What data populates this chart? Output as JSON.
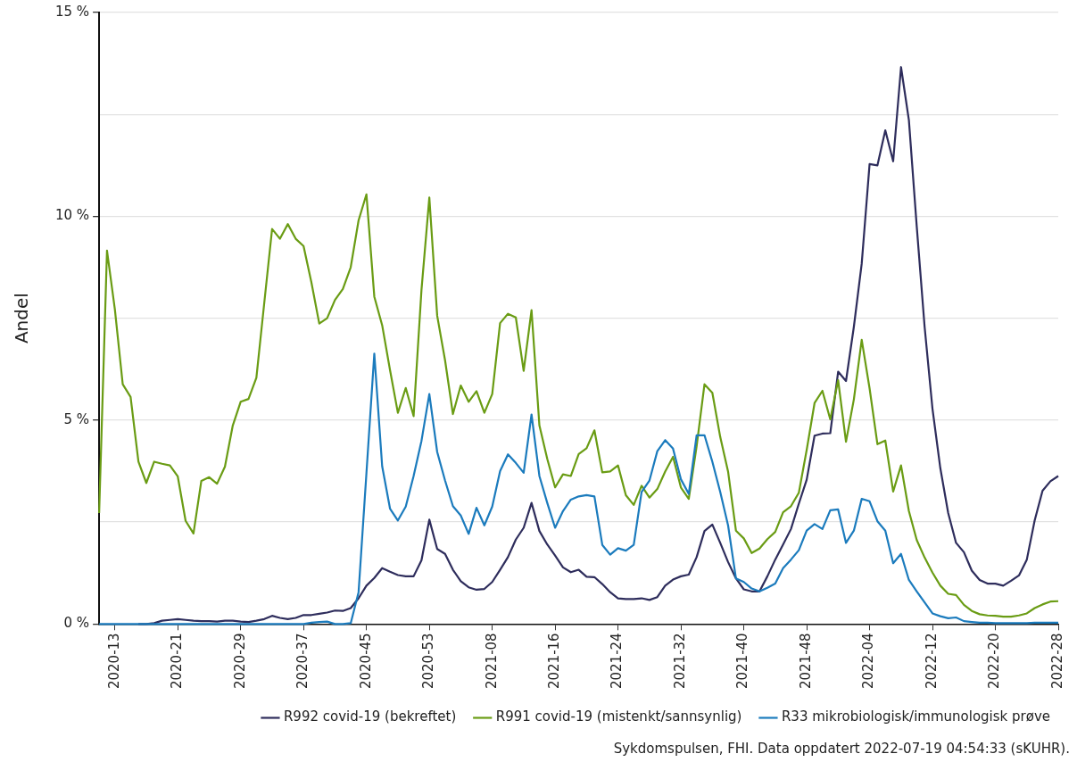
{
  "chart_data": {
    "type": "line",
    "ylabel": "Andel",
    "categories": [
      null,
      null,
      "2020-13",
      null,
      null,
      null,
      null,
      null,
      null,
      null,
      "2020-21",
      null,
      null,
      null,
      null,
      null,
      null,
      null,
      "2020-29",
      null,
      null,
      null,
      null,
      null,
      null,
      null,
      "2020-37",
      null,
      null,
      null,
      null,
      null,
      null,
      null,
      "2020-45",
      null,
      null,
      null,
      null,
      null,
      null,
      null,
      "2020-53",
      null,
      null,
      null,
      null,
      null,
      null,
      null,
      "2021-08",
      null,
      null,
      null,
      null,
      null,
      null,
      null,
      "2021-16",
      null,
      null,
      null,
      null,
      null,
      null,
      null,
      "2021-24",
      null,
      null,
      null,
      null,
      null,
      null,
      null,
      "2021-32",
      null,
      null,
      null,
      null,
      null,
      null,
      null,
      "2021-40",
      null,
      null,
      null,
      null,
      null,
      null,
      null,
      "2021-48",
      null,
      null,
      null,
      null,
      null,
      null,
      null,
      "2022-04",
      null,
      null,
      null,
      null,
      null,
      null,
      null,
      "2022-12",
      null,
      null,
      null,
      null,
      null,
      null,
      null,
      "2022-20",
      null,
      null,
      null,
      null,
      null,
      null,
      null,
      "2022-28"
    ],
    "series": [
      {
        "name": "R992 covid-19 (bekreftet)",
        "color": "#2e2d5c",
        "values": [
          null,
          null,
          null,
          null,
          null,
          0,
          0,
          0.02,
          0.08,
          0.1,
          0.12,
          0.1,
          0.08,
          0.07,
          0.07,
          0.06,
          0.08,
          0.08,
          0.06,
          0.05,
          0.08,
          0.12,
          0.2,
          0.15,
          0.12,
          0.15,
          0.22,
          0.22,
          0.25,
          0.28,
          0.33,
          0.32,
          0.39,
          0.63,
          0.94,
          1.13,
          1.37,
          1.28,
          1.2,
          1.17,
          1.17,
          1.56,
          2.56,
          1.84,
          1.72,
          1.33,
          1.05,
          0.9,
          0.84,
          0.86,
          1.03,
          1.33,
          1.64,
          2.07,
          2.36,
          2.97,
          2.28,
          1.95,
          1.68,
          1.39,
          1.27,
          1.33,
          1.16,
          1.15,
          0.98,
          0.78,
          0.63,
          0.61,
          0.61,
          0.63,
          0.59,
          0.66,
          0.94,
          1.09,
          1.17,
          1.21,
          1.64,
          2.28,
          2.44,
          1.99,
          1.52,
          1.12,
          0.85,
          0.8,
          0.8,
          1.17,
          1.58,
          1.95,
          2.33,
          2.95,
          3.54,
          4.62,
          4.67,
          4.68,
          6.19,
          5.96,
          7.29,
          8.84,
          11.28,
          11.25,
          12.11,
          11.35,
          13.66,
          12.36,
          9.75,
          7.29,
          5.28,
          3.82,
          2.72,
          1.99,
          1.76,
          1.31,
          1.08,
          0.99,
          0.99,
          0.94,
          1.06,
          1.19,
          1.58,
          2.54,
          3.27,
          3.5,
          3.63
        ]
      },
      {
        "name": "R991 covid-19 (mistenkt/sannsynlig)",
        "color": "#6a9c14",
        "values": [
          2.72,
          9.16,
          7.72,
          5.88,
          5.57,
          3.98,
          3.46,
          3.98,
          3.93,
          3.89,
          3.62,
          2.53,
          2.22,
          3.51,
          3.6,
          3.44,
          3.86,
          4.87,
          5.45,
          5.52,
          6.04,
          7.87,
          9.69,
          9.45,
          9.81,
          9.45,
          9.27,
          8.38,
          7.37,
          7.5,
          7.95,
          8.22,
          8.75,
          9.9,
          10.54,
          8.03,
          7.33,
          6.23,
          5.18,
          5.79,
          5.1,
          8.19,
          10.46,
          7.56,
          6.47,
          5.15,
          5.85,
          5.45,
          5.71,
          5.18,
          5.64,
          7.38,
          7.61,
          7.52,
          6.21,
          7.7,
          4.87,
          4.05,
          3.35,
          3.67,
          3.63,
          4.17,
          4.31,
          4.75,
          3.72,
          3.74,
          3.89,
          3.16,
          2.92,
          3.39,
          3.1,
          3.31,
          3.74,
          4.1,
          3.35,
          3.07,
          4.36,
          5.88,
          5.67,
          4.59,
          3.74,
          2.29,
          2.1,
          1.74,
          1.85,
          2.08,
          2.26,
          2.74,
          2.89,
          3.22,
          4.27,
          5.42,
          5.72,
          5.02,
          5.98,
          4.47,
          5.51,
          6.97,
          5.78,
          4.41,
          4.5,
          3.25,
          3.89,
          2.77,
          2.06,
          1.63,
          1.26,
          0.94,
          0.74,
          0.71,
          0.47,
          0.32,
          0.24,
          0.21,
          0.2,
          0.18,
          0.18,
          0.21,
          0.26,
          0.39,
          0.48,
          0.55,
          0.56
        ]
      },
      {
        "name": "R33 mikrobiologisk/immunologisk prøve",
        "color": "#1b7bbd",
        "values": [
          0,
          0,
          0,
          0,
          0,
          0,
          0,
          0,
          0,
          0,
          0,
          0,
          0,
          0,
          0,
          0,
          0,
          0,
          0,
          0,
          0,
          0,
          0,
          0,
          0,
          0,
          0,
          0.03,
          0.05,
          0.06,
          0,
          0,
          0.02,
          0.78,
          3.7,
          6.63,
          3.87,
          2.83,
          2.54,
          2.88,
          3.63,
          4.49,
          5.64,
          4.22,
          3.52,
          2.89,
          2.66,
          2.21,
          2.85,
          2.42,
          2.88,
          3.75,
          4.16,
          3.95,
          3.71,
          5.14,
          3.63,
          2.97,
          2.36,
          2.77,
          3.05,
          3.13,
          3.16,
          3.13,
          1.94,
          1.7,
          1.86,
          1.8,
          1.94,
          3.24,
          3.52,
          4.24,
          4.51,
          4.3,
          3.55,
          3.19,
          4.63,
          4.63,
          3.98,
          3.24,
          2.42,
          1.12,
          1.03,
          0.87,
          0.8,
          0.89,
          0.99,
          1.37,
          1.58,
          1.81,
          2.29,
          2.45,
          2.33,
          2.79,
          2.81,
          1.99,
          2.29,
          3.07,
          3.01,
          2.52,
          2.29,
          1.49,
          1.72,
          1.08,
          0.8,
          0.53,
          0.26,
          0.19,
          0.14,
          0.16,
          0.07,
          0.05,
          0.03,
          0.03,
          0.02,
          0.02,
          0.02,
          0.02,
          0.02,
          0.03,
          0.03,
          0.03,
          0.03
        ]
      }
    ],
    "ylim": [
      0,
      15
    ],
    "yticks": [
      {
        "value": 0,
        "label": "0 %"
      },
      {
        "value": 2.5,
        "label": null
      },
      {
        "value": 5,
        "label": "5 %"
      },
      {
        "value": 7.5,
        "label": null
      },
      {
        "value": 10,
        "label": "10 %"
      },
      {
        "value": 12.5,
        "label": null
      },
      {
        "value": 15,
        "label": "15 %"
      }
    ],
    "grid": "y",
    "legend": "bottom",
    "annotations": [
      "Sykdomspulsen, FHI. Data oppdatert 2022-07-19 04:54:33 (sKUHR)."
    ]
  }
}
